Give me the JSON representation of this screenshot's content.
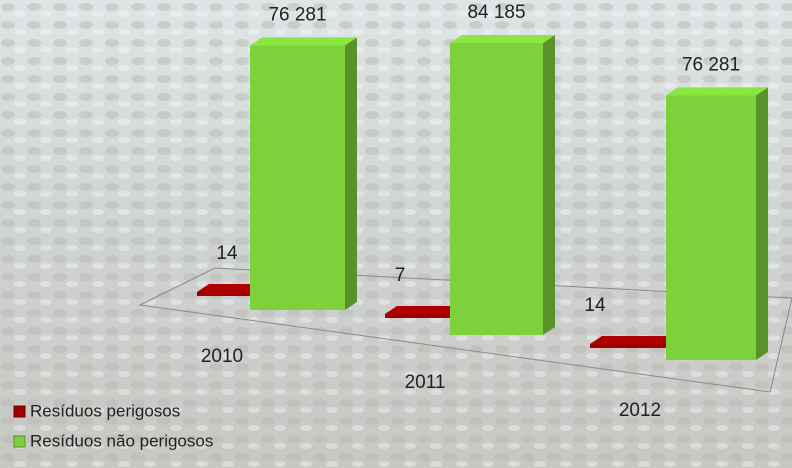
{
  "chart_data": {
    "type": "bar3d",
    "categories": [
      "2010",
      "2011",
      "2012"
    ],
    "series": [
      {
        "name": "Resíduos perigosos",
        "color": "#a00000",
        "values": [
          14,
          7,
          14
        ]
      },
      {
        "name": "Resíduos não perigosos",
        "color": "#7dd13a",
        "values": [
          76281,
          84185,
          76281
        ],
        "value_labels": [
          "76 281",
          "84 185",
          "76 281"
        ]
      }
    ]
  }
}
